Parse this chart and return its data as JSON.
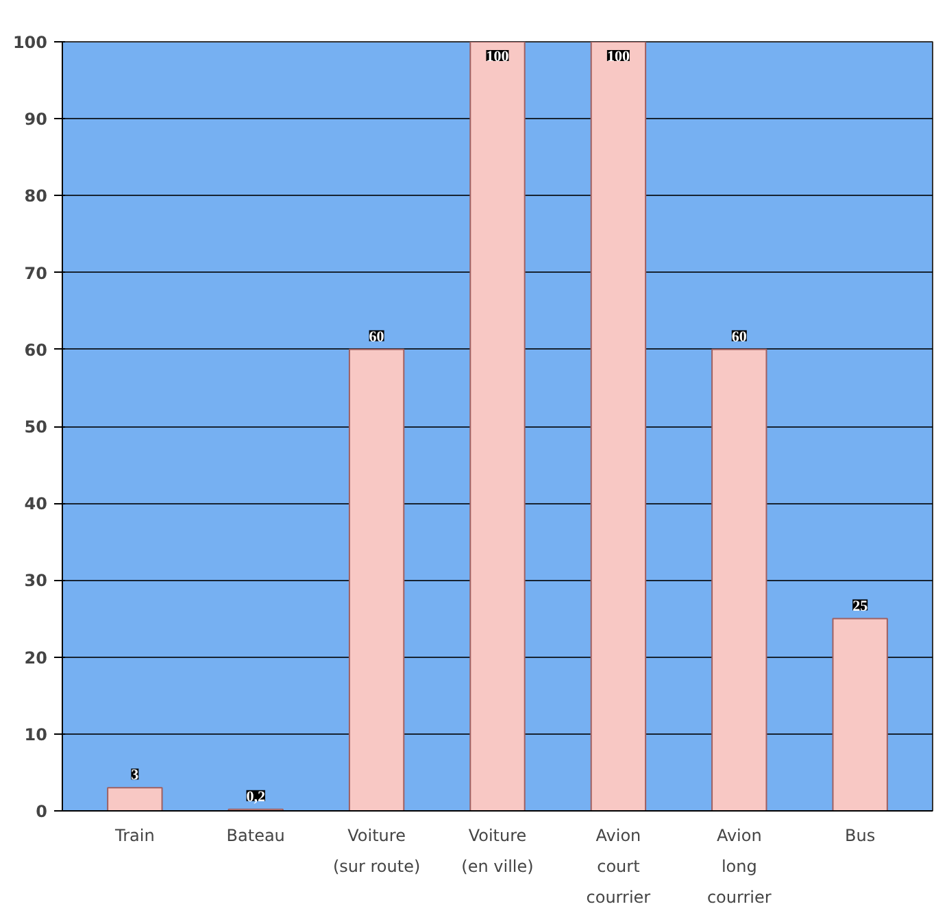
{
  "chart_data": {
    "type": "bar",
    "categories": [
      "Train",
      "Bateau",
      "Voiture\n(sur route)",
      "Voiture\n(en ville)",
      "Avion\ncourt\ncourrier",
      "Avion\nlong\ncourrier",
      "Bus"
    ],
    "values": [
      3,
      0.2,
      60,
      100,
      100,
      60,
      25
    ],
    "value_labels": [
      "3",
      "0,2",
      "60",
      "100",
      "100",
      "60",
      "25"
    ],
    "color": "#f8c8c4",
    "ylim": [
      0,
      100
    ],
    "yticks": [
      0,
      10,
      20,
      30,
      40,
      50,
      60,
      70,
      80,
      90,
      100
    ],
    "grid": "y"
  }
}
